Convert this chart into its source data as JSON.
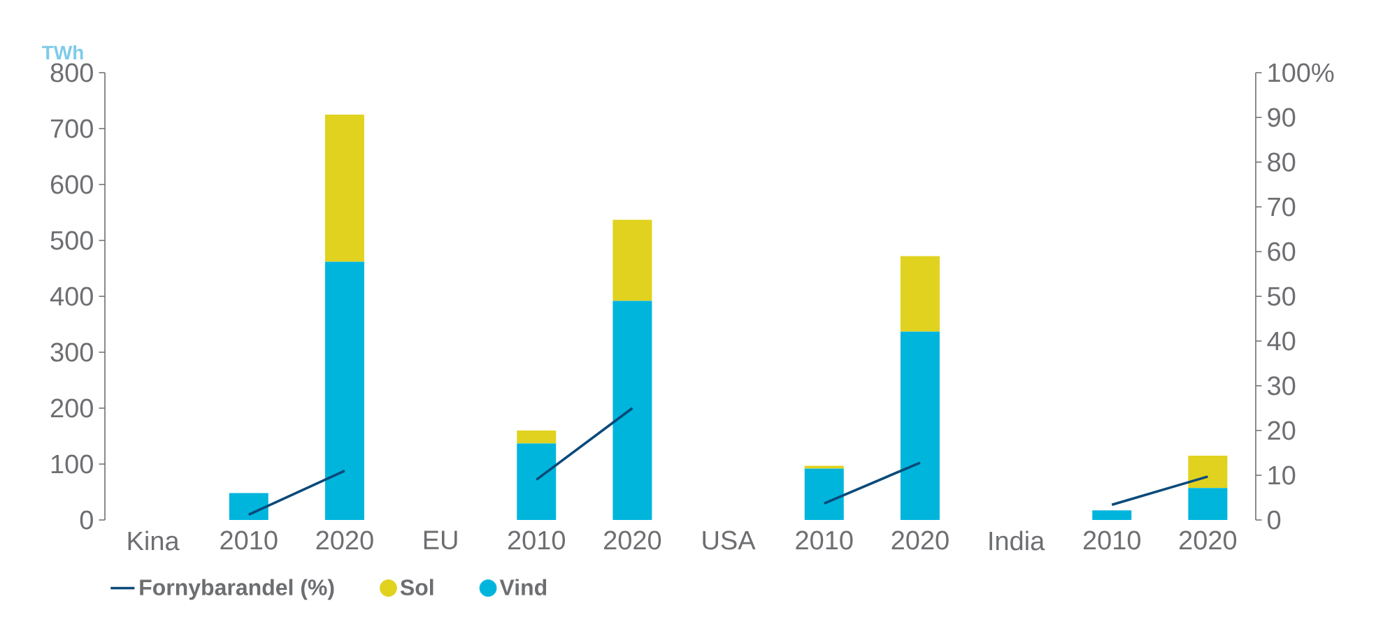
{
  "chart_data": {
    "type": "bar",
    "stacked": true,
    "ylabel": "TWh",
    "categories": [
      "Kina",
      "2010",
      "2020",
      "EU",
      "2010",
      "2020",
      "USA",
      "2010",
      "2020",
      "India",
      "2010",
      "2020"
    ],
    "series": [
      {
        "name": "Vind",
        "color": "#00b5dc",
        "values": [
          null,
          48,
          462,
          null,
          137,
          392,
          null,
          92,
          337,
          null,
          17,
          57
        ]
      },
      {
        "name": "Sol",
        "color": "#e0d21e",
        "values": [
          null,
          0,
          263,
          null,
          23,
          145,
          null,
          5,
          135,
          null,
          0,
          58
        ]
      },
      {
        "name": "Fornybarandel (%)",
        "type": "line",
        "axis": "y2",
        "color": "#0a4a7a",
        "values": [
          null,
          1.2,
          11,
          null,
          9,
          25,
          null,
          3.7,
          12.8,
          null,
          3.4,
          9.7
        ]
      }
    ],
    "ylim": [
      0,
      800
    ],
    "yticks": [
      0,
      100,
      200,
      300,
      400,
      500,
      600,
      700,
      800
    ],
    "y2lim": [
      0,
      100
    ],
    "y2ticks": [
      0,
      10,
      20,
      30,
      40,
      50,
      60,
      70,
      80,
      90,
      {
        "value": 100,
        "label": "100%"
      }
    ],
    "legend": "bottom left",
    "grid": false
  }
}
